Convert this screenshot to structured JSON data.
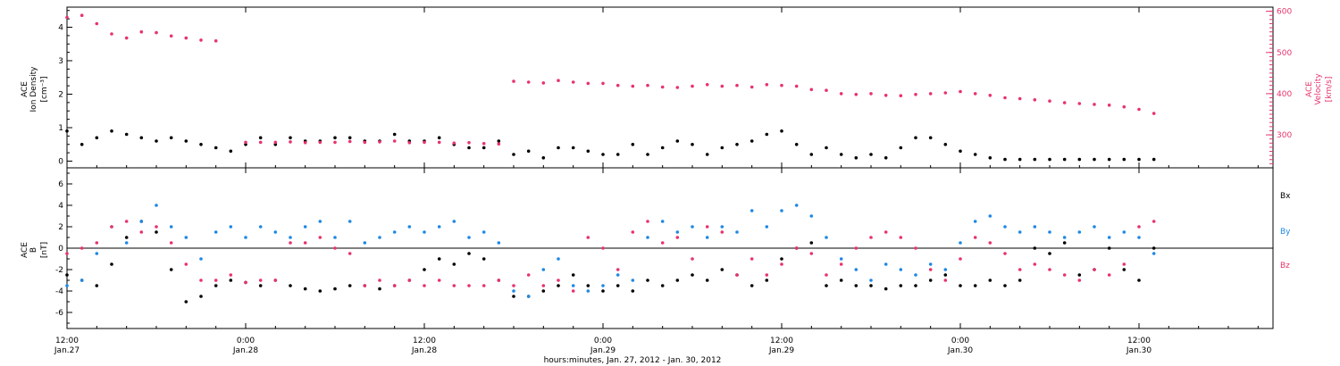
{
  "colors": {
    "black": "#000000",
    "velocity": "#e8336b",
    "by": "#1e88e5",
    "bz": "#e8336b"
  },
  "time_axis": {
    "label": "hours:minutes, Jan. 27, 2012 - Jan. 30, 2012",
    "start_hour": 0,
    "end_hour": 81,
    "ticks": [
      {
        "hour": 0,
        "time": "12:00",
        "date": "Jan.27"
      },
      {
        "hour": 12,
        "time": "0:00",
        "date": "Jan.28"
      },
      {
        "hour": 24,
        "time": "12:00",
        "date": "Jan.28"
      },
      {
        "hour": 36,
        "time": "0:00",
        "date": "Jan.29"
      },
      {
        "hour": 48,
        "time": "12:00",
        "date": "Jan.29"
      },
      {
        "hour": 60,
        "time": "0:00",
        "date": "Jan.30"
      },
      {
        "hour": 72,
        "time": "12:00",
        "date": "Jan.30"
      }
    ]
  },
  "top_panel": {
    "left_axis": {
      "label_line1": "ACE",
      "label_line2": "Ion Density",
      "unit": "[cm⁻³]",
      "range": [
        -0.2,
        4.6
      ],
      "ticks": [
        "0",
        "1",
        "2",
        "3",
        "4"
      ]
    },
    "right_axis": {
      "label_line1": "ACE",
      "label_line2": "Velocity",
      "unit": "[km/s]",
      "range": [
        220,
        610
      ],
      "ticks": [
        "300",
        "400",
        "500",
        "600"
      ]
    }
  },
  "bottom_panel": {
    "axis": {
      "label_line1": "ACE",
      "label_line2": "B",
      "unit": "[nT]",
      "range": [
        -7.5,
        7.5
      ],
      "ticks": [
        "-6",
        "-4",
        "-2",
        "0",
        "2",
        "4",
        "6"
      ]
    },
    "legend": [
      "Bx",
      "By",
      "Bz"
    ]
  },
  "chart_data": [
    {
      "type": "scatter",
      "panel": "top",
      "series": [
        {
          "name": "Ion Density",
          "axis": "left",
          "color": "#000000",
          "x": [
            0,
            1,
            2,
            3,
            4,
            5,
            6,
            7,
            8,
            9,
            10,
            11,
            12,
            13,
            14,
            15,
            16,
            17,
            18,
            19,
            20,
            21,
            22,
            23,
            24,
            25,
            26,
            27,
            28,
            29,
            30,
            31,
            32,
            33,
            34,
            35,
            36,
            37,
            38,
            39,
            40,
            41,
            42,
            43,
            44,
            45,
            46,
            47,
            48,
            49,
            50,
            51,
            52,
            53,
            54,
            55,
            56,
            57,
            58,
            59,
            60,
            61,
            62,
            63,
            64,
            65,
            66,
            67,
            68,
            69,
            70,
            71,
            72,
            73
          ],
          "y": [
            0.9,
            0.5,
            0.7,
            0.9,
            0.8,
            0.7,
            0.6,
            0.7,
            0.6,
            0.5,
            0.4,
            0.3,
            0.5,
            0.7,
            0.5,
            0.7,
            0.6,
            0.6,
            0.7,
            0.7,
            0.6,
            0.6,
            0.8,
            0.6,
            0.6,
            0.7,
            0.5,
            0.4,
            0.4,
            0.6,
            0.2,
            0.3,
            0.1,
            0.4,
            0.4,
            0.3,
            0.2,
            0.2,
            0.5,
            0.2,
            0.4,
            0.6,
            0.5,
            0.2,
            0.4,
            0.5,
            0.6,
            0.8,
            0.9,
            0.5,
            0.2,
            0.4,
            0.2,
            0.1,
            0.2,
            0.1,
            0.4,
            0.7,
            0.7,
            0.5,
            0.3,
            0.2,
            0.1,
            0.05,
            0.05,
            0.05,
            0.05,
            0.05,
            0.05,
            0.05,
            0.05,
            0.05,
            0.05,
            0.05
          ]
        },
        {
          "name": "Velocity",
          "axis": "right",
          "color": "#e8336b",
          "x": [
            0,
            1,
            2,
            3,
            4,
            5,
            6,
            7,
            8,
            9,
            10,
            11,
            12,
            13,
            14,
            15,
            16,
            17,
            18,
            19,
            20,
            21,
            22,
            23,
            24,
            25,
            26,
            27,
            28,
            29,
            30,
            31,
            32,
            33,
            34,
            35,
            36,
            37,
            38,
            39,
            40,
            41,
            42,
            43,
            44,
            45,
            46,
            47,
            48,
            49,
            50,
            51,
            52,
            53,
            54,
            55,
            56,
            57,
            58,
            59,
            60,
            61,
            62,
            63,
            64,
            65,
            66,
            67,
            68,
            69,
            70,
            71,
            72,
            73
          ],
          "y": [
            585,
            590,
            570,
            545,
            535,
            550,
            548,
            540,
            535,
            530,
            528,
            null,
            282,
            282,
            282,
            283,
            281,
            282,
            282,
            284,
            282,
            283,
            285,
            281,
            282,
            282,
            280,
            281,
            279,
            278,
            430,
            428,
            426,
            432,
            428,
            425,
            425,
            420,
            418,
            420,
            416,
            415,
            418,
            422,
            418,
            420,
            416,
            422,
            420,
            418,
            410,
            408,
            400,
            398,
            400,
            396,
            395,
            398,
            400,
            402,
            405,
            400,
            396,
            390,
            388,
            385,
            382,
            378,
            376,
            374,
            372,
            368,
            362,
            352
          ]
        }
      ]
    },
    {
      "type": "scatter",
      "panel": "bottom",
      "series": [
        {
          "name": "Bx",
          "color": "#000000",
          "x": [
            0,
            1,
            2,
            3,
            4,
            5,
            6,
            7,
            8,
            9,
            10,
            11,
            12,
            13,
            14,
            15,
            16,
            17,
            18,
            19,
            20,
            21,
            22,
            23,
            24,
            25,
            26,
            27,
            28,
            29,
            30,
            31,
            32,
            33,
            34,
            35,
            36,
            37,
            38,
            39,
            40,
            41,
            42,
            43,
            44,
            45,
            46,
            47,
            48,
            49,
            50,
            51,
            52,
            53,
            54,
            55,
            56,
            57,
            58,
            59,
            60,
            61,
            62,
            63,
            64,
            65,
            66,
            67,
            68,
            69,
            70,
            71,
            72,
            73
          ],
          "y": [
            -2.5,
            -3.0,
            -3.5,
            -1.5,
            1.0,
            2.5,
            1.5,
            -2.0,
            -5.0,
            -4.5,
            -3.5,
            -3.0,
            -3.2,
            -3.5,
            -3.0,
            -3.5,
            -3.8,
            -4.0,
            -3.8,
            -3.5,
            -3.5,
            -3.8,
            -3.5,
            -3.0,
            -2.0,
            -1.0,
            -1.5,
            -0.5,
            -1.0,
            -3.0,
            -4.5,
            -4.5,
            -4.0,
            -3.5,
            -2.5,
            -3.5,
            -4.0,
            -3.5,
            -4.0,
            -3.0,
            -3.5,
            -3.0,
            -2.5,
            -3.0,
            -2.0,
            -2.5,
            -3.5,
            -3.0,
            -1.0,
            0.0,
            0.5,
            -3.5,
            -3.0,
            -3.5,
            -3.5,
            -3.8,
            -3.5,
            -3.5,
            -3.0,
            -2.5,
            -3.5,
            -3.5,
            -3.0,
            -3.5,
            -3.0,
            0.0,
            -0.5,
            0.5,
            -2.5,
            -2.0,
            0.0,
            -2.0,
            -3.0,
            0.0
          ]
        },
        {
          "name": "By",
          "color": "#1e88e5",
          "x": [
            0,
            1,
            2,
            3,
            4,
            5,
            6,
            7,
            8,
            9,
            10,
            11,
            12,
            13,
            14,
            15,
            16,
            17,
            18,
            19,
            20,
            21,
            22,
            23,
            24,
            25,
            26,
            27,
            28,
            29,
            30,
            31,
            32,
            33,
            34,
            35,
            36,
            37,
            38,
            39,
            40,
            41,
            42,
            43,
            44,
            45,
            46,
            47,
            48,
            49,
            50,
            51,
            52,
            53,
            54,
            55,
            56,
            57,
            58,
            59,
            60,
            61,
            62,
            63,
            64,
            65,
            66,
            67,
            68,
            69,
            70,
            71,
            72,
            73
          ],
          "y": [
            -3.5,
            -3.0,
            -0.5,
            2.0,
            0.5,
            2.5,
            4.0,
            2.0,
            1.0,
            -1.0,
            1.5,
            2.0,
            1.0,
            2.0,
            1.5,
            1.0,
            2.0,
            2.5,
            1.0,
            2.5,
            0.5,
            1.0,
            1.5,
            2.0,
            1.5,
            2.0,
            2.5,
            1.0,
            1.5,
            0.5,
            -4.0,
            -4.5,
            -2.0,
            -1.0,
            -3.5,
            -4.0,
            -3.5,
            -2.5,
            -3.0,
            1.0,
            2.5,
            1.5,
            2.0,
            1.0,
            2.0,
            1.5,
            3.5,
            2.0,
            3.5,
            4.0,
            3.0,
            1.0,
            -1.0,
            -2.0,
            -3.0,
            -1.5,
            -2.0,
            -2.5,
            -1.5,
            -2.0,
            0.5,
            2.5,
            3.0,
            2.0,
            1.5,
            2.0,
            1.5,
            1.0,
            1.5,
            2.0,
            1.0,
            1.5,
            1.0,
            -0.5
          ]
        },
        {
          "name": "Bz",
          "color": "#e8336b",
          "x": [
            0,
            1,
            2,
            3,
            4,
            5,
            6,
            7,
            8,
            9,
            10,
            11,
            12,
            13,
            14,
            15,
            16,
            17,
            18,
            19,
            20,
            21,
            22,
            23,
            24,
            25,
            26,
            27,
            28,
            29,
            30,
            31,
            32,
            33,
            34,
            35,
            36,
            37,
            38,
            39,
            40,
            41,
            42,
            43,
            44,
            45,
            46,
            47,
            48,
            49,
            50,
            51,
            52,
            53,
            54,
            55,
            56,
            57,
            58,
            59,
            60,
            61,
            62,
            63,
            64,
            65,
            66,
            67,
            68,
            69,
            70,
            71,
            72,
            73
          ],
          "y": [
            -0.5,
            0.0,
            0.5,
            2.0,
            2.5,
            1.5,
            2.0,
            0.5,
            -1.5,
            -3.0,
            -3.0,
            -2.5,
            -3.2,
            -3.0,
            -3.0,
            0.5,
            0.5,
            1.0,
            0.0,
            -0.5,
            -3.5,
            -3.0,
            -3.5,
            -3.0,
            -3.5,
            -3.0,
            -3.5,
            -3.5,
            -3.5,
            -3.0,
            -3.5,
            -2.5,
            -3.5,
            -3.0,
            -4.0,
            1.0,
            0.0,
            -2.0,
            1.5,
            2.5,
            0.5,
            1.0,
            -1.0,
            2.0,
            1.5,
            -2.5,
            -1.0,
            -2.5,
            -1.5,
            0.0,
            -0.5,
            -2.5,
            -1.5,
            0.0,
            1.0,
            1.5,
            1.0,
            0.0,
            -2.0,
            -3.0,
            -1.0,
            1.0,
            0.5,
            -0.5,
            -2.0,
            -1.5,
            -2.0,
            -2.5,
            -3.0,
            -2.0,
            -2.5,
            -1.5,
            2.0,
            2.5
          ]
        }
      ]
    }
  ]
}
